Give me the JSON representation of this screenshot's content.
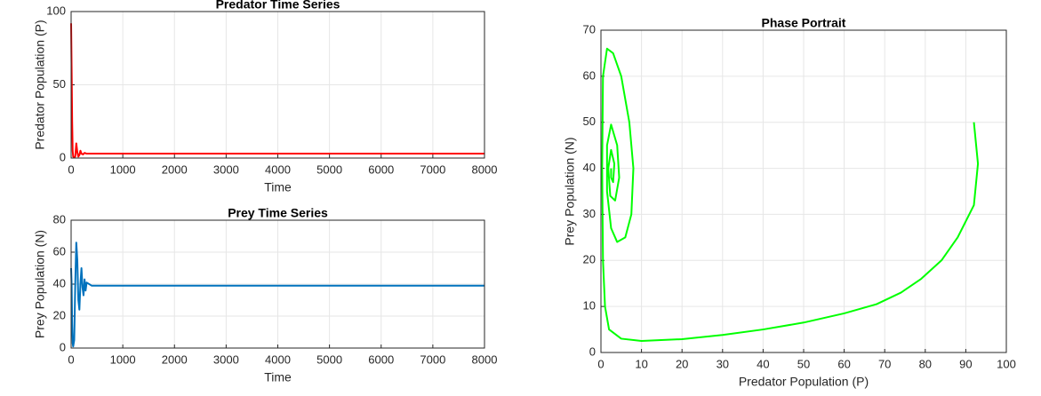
{
  "chart_data": [
    {
      "type": "line",
      "title": "Predator Time Series",
      "xlabel": "Time",
      "ylabel": "Predator Population (P)",
      "x": [
        0,
        10,
        20,
        30,
        40,
        60,
        80,
        100,
        120,
        140,
        160,
        180,
        200,
        230,
        260,
        300,
        400,
        8000
      ],
      "values": [
        92,
        60,
        25,
        5,
        1,
        0.5,
        1,
        10,
        4,
        1,
        2,
        5,
        3,
        2.5,
        3.5,
        3,
        3,
        3
      ],
      "color": "#ff0000",
      "xlim": [
        0,
        8000
      ],
      "xticks": [
        0,
        1000,
        2000,
        3000,
        4000,
        5000,
        6000,
        7000,
        8000
      ],
      "ylim": [
        0,
        100
      ],
      "yticks": [
        0,
        50,
        100
      ],
      "grid": true
    },
    {
      "type": "line",
      "title": "Prey Time Series",
      "xlabel": "Time",
      "ylabel": "Prey Population (N)",
      "x": [
        0,
        10,
        20,
        30,
        40,
        60,
        80,
        100,
        120,
        140,
        160,
        180,
        200,
        220,
        240,
        260,
        280,
        300,
        400,
        8000
      ],
      "values": [
        50,
        40,
        15,
        3,
        1,
        5,
        40,
        66,
        55,
        30,
        24,
        40,
        50,
        38,
        33,
        43,
        36,
        41,
        39,
        39
      ],
      "color": "#0072bd",
      "xlim": [
        0,
        8000
      ],
      "xticks": [
        0,
        1000,
        2000,
        3000,
        4000,
        5000,
        6000,
        7000,
        8000
      ],
      "ylim": [
        0,
        80
      ],
      "yticks": [
        0,
        20,
        40,
        60,
        80
      ],
      "grid": true
    },
    {
      "type": "line",
      "title": "Phase Portrait",
      "xlabel": "Predator Population (P)",
      "ylabel": "Prey Population (N)",
      "x": [
        92,
        93,
        92,
        88,
        84,
        79,
        74,
        68,
        60,
        50,
        40,
        30,
        20,
        10,
        5,
        2,
        1,
        0.5,
        0.3,
        0.5,
        1.5,
        3,
        5,
        7,
        8,
        7.5,
        6,
        4,
        2.5,
        1.5,
        1.5,
        2.5,
        4,
        4.5,
        3.5,
        2.3,
        1.8,
        2.5,
        3.3,
        3,
        2.5,
        2.5
      ],
      "values": [
        50,
        41,
        32,
        25,
        20,
        16,
        13,
        10.5,
        8.5,
        6.5,
        5,
        3.8,
        2.9,
        2.5,
        3,
        5,
        10,
        20,
        40,
        60,
        66,
        65,
        60,
        50,
        40,
        30,
        25,
        24,
        27,
        35,
        45,
        49.5,
        45,
        38,
        33,
        34,
        40,
        44,
        41,
        37,
        38,
        40
      ],
      "color": "#00ff00",
      "xlim": [
        0,
        100
      ],
      "xticks": [
        0,
        10,
        20,
        30,
        40,
        50,
        60,
        70,
        80,
        90,
        100
      ],
      "ylim": [
        0,
        70
      ],
      "yticks": [
        0,
        10,
        20,
        30,
        40,
        50,
        60,
        70
      ],
      "grid": true
    }
  ]
}
